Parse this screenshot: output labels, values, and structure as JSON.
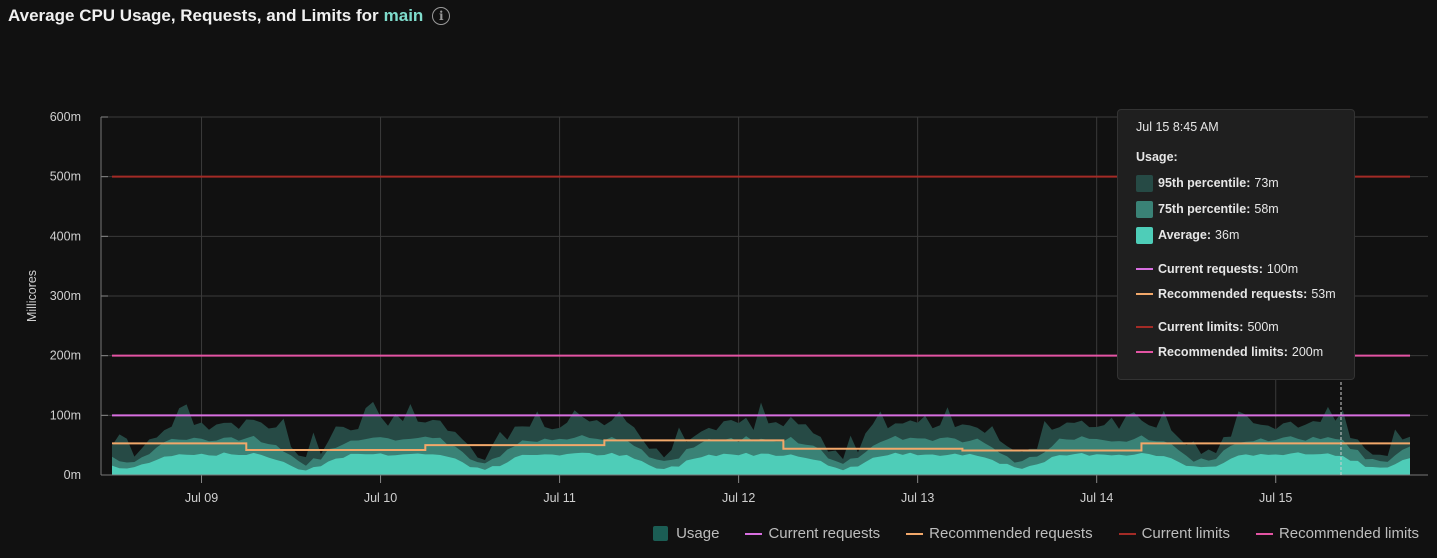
{
  "title": {
    "prefix": "Average CPU Usage, Requests, and Limits for",
    "container": "main"
  },
  "colors": {
    "p95": "#264a45",
    "p75": "#3a8276",
    "avg": "#4ecdb8",
    "current_requests": "#d86fe0",
    "recommended_requests": "#f2a86a",
    "current_limits": "#a32b26",
    "recommended_limits": "#e354a3",
    "grid": "#3a3a3a"
  },
  "chart_data": {
    "type": "area",
    "ylabel": "Millicores",
    "ylim": [
      0,
      600
    ],
    "yticks": [
      "0m",
      "100m",
      "200m",
      "300m",
      "400m",
      "500m",
      "600m"
    ],
    "x_range": [
      "Jul 8 12:00",
      "Jul 15 18:00"
    ],
    "x_ticks": [
      "Jul 09",
      "Jul 10",
      "Jul 11",
      "Jul 12",
      "Jul 13",
      "Jul 14",
      "Jul 15"
    ],
    "grid": true,
    "legend_position": "bottom-right",
    "series": [
      {
        "name": "Usage",
        "kind": "area-bands",
        "bands": [
          "95th percentile",
          "75th percentile",
          "Average"
        ],
        "typical": {
          "95th percentile": [
            40,
            100
          ],
          "75th percentile": [
            20,
            58
          ],
          "Average": [
            0,
            36
          ]
        }
      },
      {
        "name": "Current requests",
        "kind": "line",
        "value": 100
      },
      {
        "name": "Recommended requests",
        "kind": "step",
        "segments": [
          {
            "from": "Jul 8 12:00",
            "to": "Jul 9 06:00",
            "value": 53
          },
          {
            "from": "Jul 9 06:00",
            "to": "Jul 10 06:00",
            "value": 42
          },
          {
            "from": "Jul 10 06:00",
            "to": "Jul 11 06:00",
            "value": 50
          },
          {
            "from": "Jul 11 06:00",
            "to": "Jul 12 06:00",
            "value": 58
          },
          {
            "from": "Jul 12 06:00",
            "to": "Jul 13 06:00",
            "value": 44
          },
          {
            "from": "Jul 13 06:00",
            "to": "Jul 14 06:00",
            "value": 41
          },
          {
            "from": "Jul 14 06:00",
            "to": "Jul 15 18:00",
            "value": 53
          }
        ]
      },
      {
        "name": "Current limits",
        "kind": "line",
        "value": 500
      },
      {
        "name": "Recommended limits",
        "kind": "line",
        "value": 200
      }
    ],
    "cursor": "Jul 15 8:45 AM"
  },
  "tooltip": {
    "time": "Jul 15 8:45 AM",
    "usage_heading": "Usage:",
    "rows": [
      {
        "label": "95th percentile:",
        "value": "73m"
      },
      {
        "label": "75th percentile:",
        "value": "58m"
      },
      {
        "label": "Average:",
        "value": "36m"
      },
      {
        "label": "Current requests:",
        "value": "100m"
      },
      {
        "label": "Recommended requests:",
        "value": "53m"
      },
      {
        "label": "Current limits:",
        "value": "500m"
      },
      {
        "label": "Recommended limits:",
        "value": "200m"
      }
    ]
  },
  "legend": [
    "Usage",
    "Current requests",
    "Recommended requests",
    "Current limits",
    "Recommended limits"
  ]
}
